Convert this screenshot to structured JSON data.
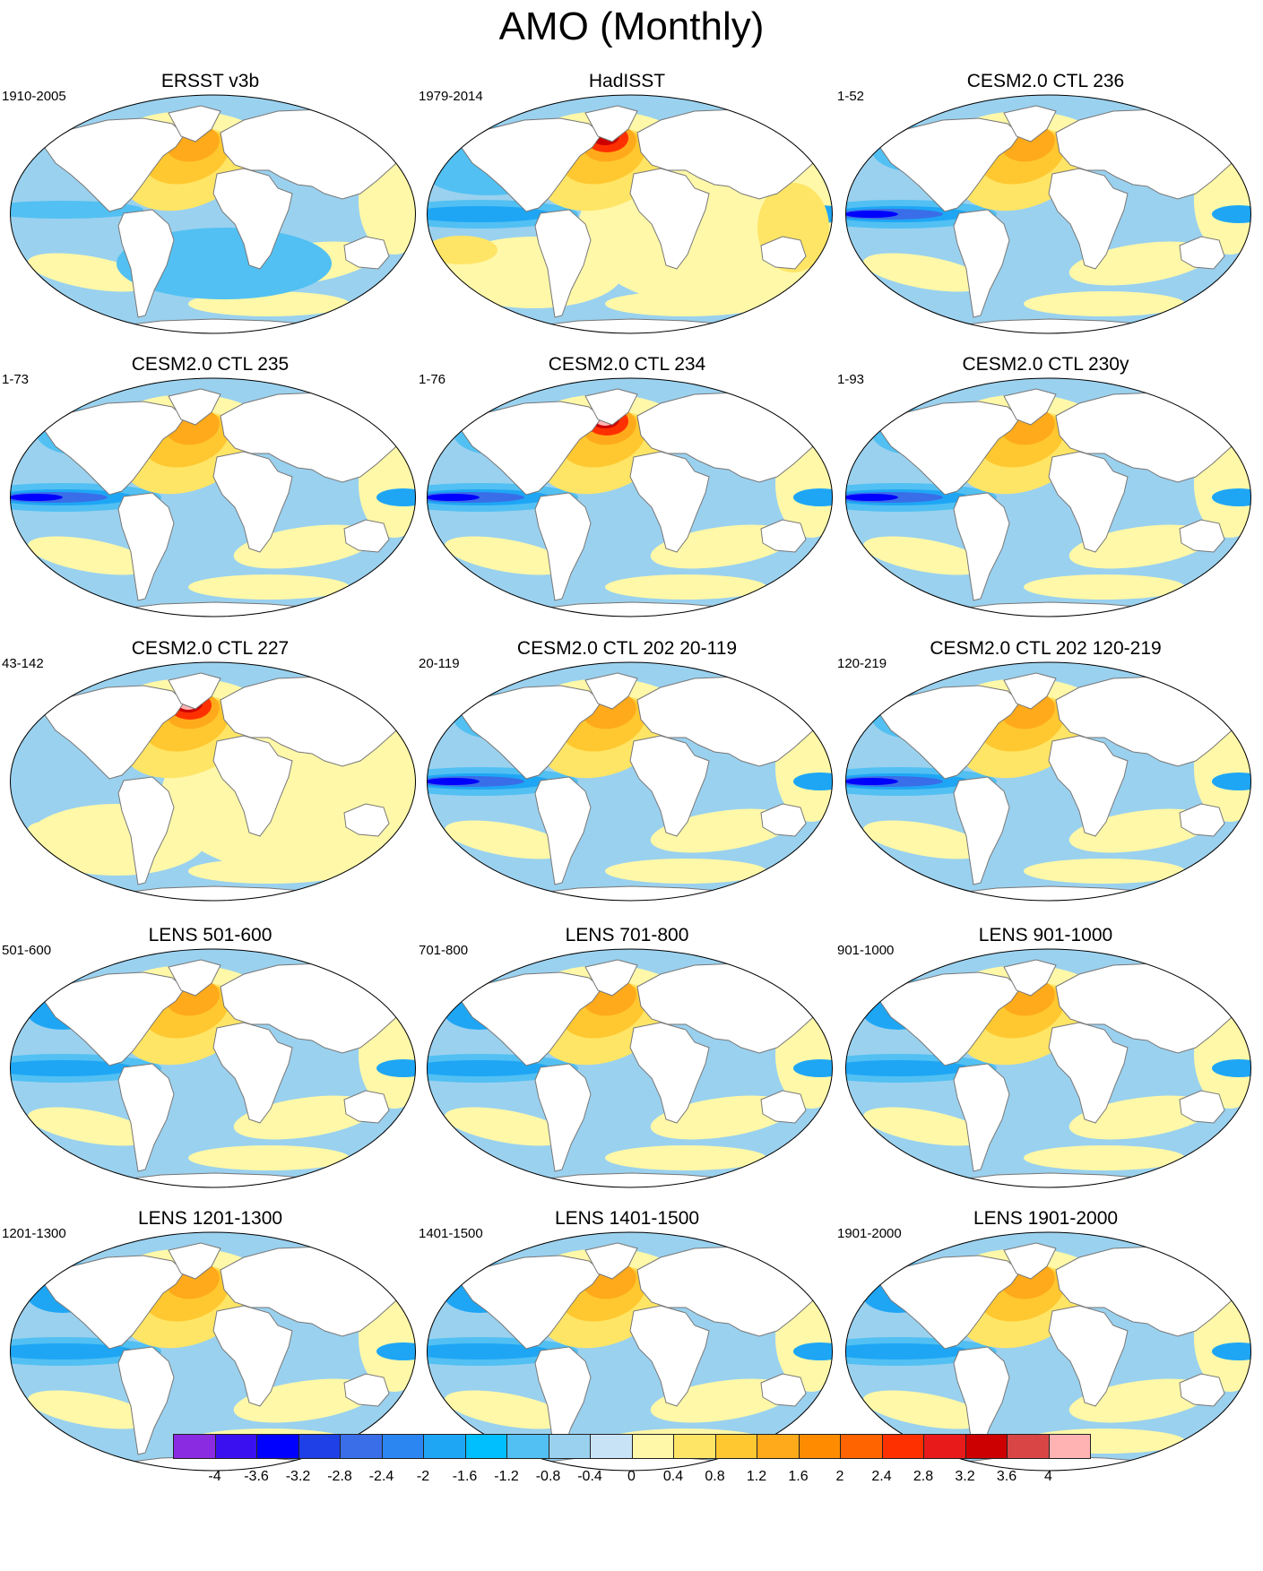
{
  "title": "AMO (Monthly)",
  "panels": [
    {
      "title": "ERSST v3b",
      "period": "1910-2005",
      "pattern": "ersst"
    },
    {
      "title": "HadISST",
      "period": "1979-2014",
      "pattern": "hadisst"
    },
    {
      "title": "CESM2.0 CTL 236",
      "period": "1-52",
      "pattern": "model_pdo"
    },
    {
      "title": "CESM2.0 CTL 235",
      "period": "1-73",
      "pattern": "model_pdo"
    },
    {
      "title": "CESM2.0 CTL 234",
      "period": "1-76",
      "pattern": "model_strong"
    },
    {
      "title": "CESM2.0 CTL 230y",
      "period": "1-93",
      "pattern": "model_pdo"
    },
    {
      "title": "CESM2.0 CTL 227",
      "period": "43-142",
      "pattern": "model_warm"
    },
    {
      "title": "CESM2.0 CTL 202 20-119",
      "period": "20-119",
      "pattern": "model_pdo"
    },
    {
      "title": "CESM2.0 CTL 202 120-219",
      "period": "120-219",
      "pattern": "model_pdo"
    },
    {
      "title": "LENS 501-600",
      "period": "501-600",
      "pattern": "lens"
    },
    {
      "title": "LENS 701-800",
      "period": "701-800",
      "pattern": "lens"
    },
    {
      "title": "LENS 901-1000",
      "period": "901-1000",
      "pattern": "lens"
    },
    {
      "title": "LENS 1201-1300",
      "period": "1201-1300",
      "pattern": "lens"
    },
    {
      "title": "LENS 1401-1500",
      "period": "1401-1500",
      "pattern": "lens"
    },
    {
      "title": "LENS 1901-2000",
      "period": "1901-2000",
      "pattern": "lens"
    }
  ],
  "colorbar": {
    "labels": [
      "-4",
      "-3.6",
      "-3.2",
      "-2.8",
      "-2.4",
      "-2",
      "-1.6",
      "-1.2",
      "-0.8",
      "-0.4",
      "0",
      "0.4",
      "0.8",
      "1.2",
      "1.6",
      "2",
      "2.4",
      "2.8",
      "3.2",
      "3.6",
      "4"
    ],
    "colors": [
      "#8a2be2",
      "#3a10f0",
      "#0000ff",
      "#1e40e6",
      "#3a6ee8",
      "#2b86f2",
      "#1ea6f5",
      "#00bfff",
      "#52c0f2",
      "#9ad1ef",
      "#c8e3f5",
      "#fff8a8",
      "#ffe566",
      "#ffc830",
      "#ffaa1a",
      "#ff8c00",
      "#ff6400",
      "#ff3000",
      "#e81a1a",
      "#cc0000",
      "#d94545",
      "#ffb3b3"
    ]
  }
}
